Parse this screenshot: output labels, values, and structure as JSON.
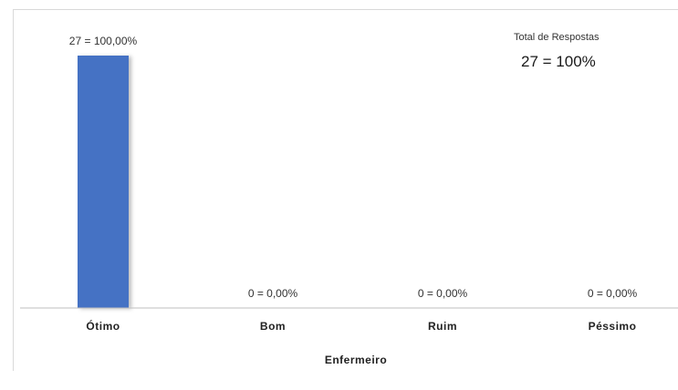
{
  "total": {
    "title": "Total de Respostas",
    "value": "27 = 100%"
  },
  "chart_data": {
    "type": "bar",
    "categories": [
      "Ótimo",
      "Bom",
      "Ruim",
      "Péssimo"
    ],
    "values": [
      27,
      0,
      0,
      0
    ],
    "data_labels": [
      "27 = 100,00%",
      "0 = 0,00%",
      "0 = 0,00%",
      "0 = 0,00%"
    ],
    "xlabel": "Enfermeiro",
    "ylabel": "",
    "ylim": [
      0,
      27
    ],
    "grid": false,
    "bar_color": "#4472c4"
  }
}
